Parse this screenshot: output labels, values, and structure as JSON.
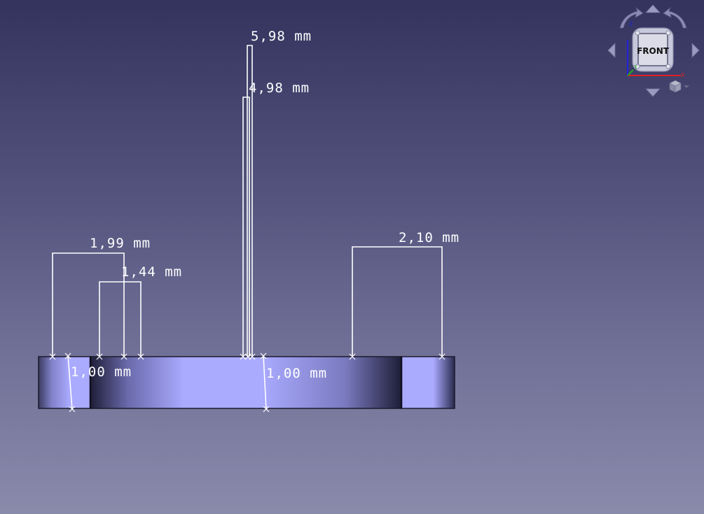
{
  "viewport": {
    "background_top": "#33335e",
    "background_bottom": "#8a8aab",
    "part_color": "#aaaaff",
    "dimension_color": "#ffffff"
  },
  "dimensions": [
    {
      "id": "dim-5-98",
      "label": "5,98 mm",
      "value_mm": 5.98
    },
    {
      "id": "dim-4-98",
      "label": "4,98 mm",
      "value_mm": 4.98
    },
    {
      "id": "dim-1-99",
      "label": "1,99 mm",
      "value_mm": 1.99
    },
    {
      "id": "dim-1-44",
      "label": "1,44 mm",
      "value_mm": 1.44
    },
    {
      "id": "dim-2-10",
      "label": "2,10 mm",
      "value_mm": 2.1
    },
    {
      "id": "dim-1-00-left",
      "label": "1,00 mm",
      "value_mm": 1.0
    },
    {
      "id": "dim-1-00-center",
      "label": "1,00 mm",
      "value_mm": 1.0
    }
  ],
  "navcube": {
    "face_label": "FRONT",
    "axes": {
      "x": "X",
      "y": "Y",
      "z": "Z"
    },
    "axis_colors": {
      "x": "#dd2222",
      "y": "#22aa22",
      "z": "#2222dd"
    },
    "icons": [
      "rotate-left-icon",
      "rotate-right-icon",
      "arrow-up-icon",
      "arrow-down-icon",
      "arrow-left-icon",
      "arrow-right-icon",
      "view-menu-cube-icon",
      "dropdown-caret-icon"
    ]
  }
}
